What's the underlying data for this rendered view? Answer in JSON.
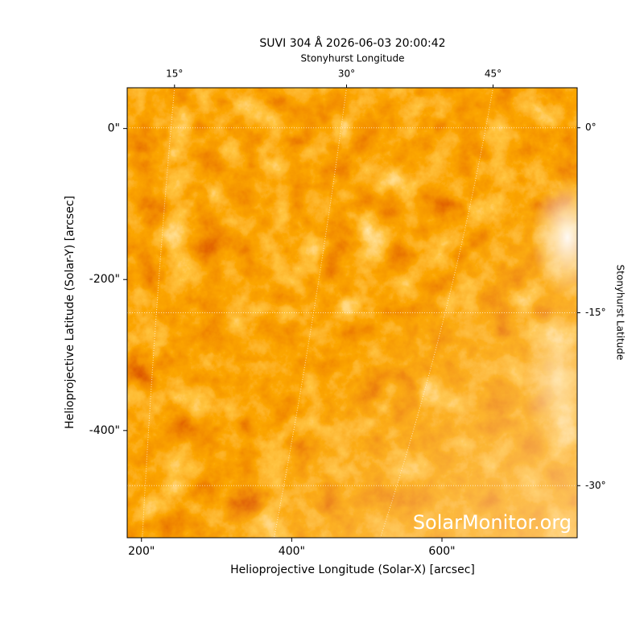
{
  "chart_data": {
    "type": "image",
    "title": "SUVI 304 Å 2026-06-03 20:00:42",
    "xlabel": "Helioprojective Longitude (Solar-X) [arcsec]",
    "ylabel": "Helioprojective Latitude (Solar-Y) [arcsec]",
    "x2label": "Stonyhurst Longitude",
    "y2label": "Stonyhurst Latitude",
    "watermark": "SolarMonitor.org",
    "xlim": [
      181,
      780
    ],
    "ylim": [
      -542,
      54
    ],
    "xticks": [
      {
        "value": 200,
        "label": "200\""
      },
      {
        "value": 400,
        "label": "400\""
      },
      {
        "value": 600,
        "label": "600\""
      }
    ],
    "yticks": [
      {
        "value": 0,
        "label": "0\""
      },
      {
        "value": -200,
        "label": "-200\""
      },
      {
        "value": -400,
        "label": "-400\""
      }
    ],
    "x2ticks": [
      {
        "value": 244,
        "label": "15°"
      },
      {
        "value": 473,
        "label": "30°"
      },
      {
        "value": 668,
        "label": "45°"
      }
    ],
    "y2ticks": [
      {
        "value": 1,
        "label": "0°"
      },
      {
        "value": -244,
        "label": "-15°"
      },
      {
        "value": -473,
        "label": "-30°"
      }
    ],
    "grid": true
  }
}
